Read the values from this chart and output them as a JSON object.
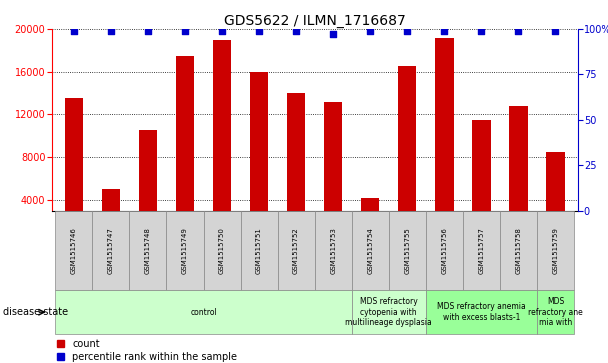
{
  "title": "GDS5622 / ILMN_1716687",
  "samples": [
    "GSM1515746",
    "GSM1515747",
    "GSM1515748",
    "GSM1515749",
    "GSM1515750",
    "GSM1515751",
    "GSM1515752",
    "GSM1515753",
    "GSM1515754",
    "GSM1515755",
    "GSM1515756",
    "GSM1515757",
    "GSM1515758",
    "GSM1515759"
  ],
  "counts": [
    13500,
    5000,
    10500,
    17500,
    19000,
    16000,
    14000,
    13200,
    4200,
    16500,
    19200,
    11500,
    12800,
    8500
  ],
  "percentile_ranks": [
    99,
    99,
    99,
    99,
    99,
    99,
    99,
    97,
    99,
    99,
    99,
    99,
    99,
    99
  ],
  "bar_color": "#cc0000",
  "dot_color": "#0000cc",
  "ylim_left": [
    3000,
    20000
  ],
  "ylim_right": [
    0,
    100
  ],
  "yticks_left": [
    4000,
    8000,
    12000,
    16000,
    20000
  ],
  "yticks_right": [
    0,
    25,
    50,
    75,
    100
  ],
  "disease_groups": [
    {
      "label": "control",
      "start": 0,
      "end": 8,
      "color": "#ccffcc"
    },
    {
      "label": "MDS refractory\ncytopenia with\nmultilineage dysplasia",
      "start": 8,
      "end": 10,
      "color": "#ccffcc"
    },
    {
      "label": "MDS refractory anemia\nwith excess blasts-1",
      "start": 10,
      "end": 13,
      "color": "#99ff99"
    },
    {
      "label": "MDS\nrefractory ane\nmia with",
      "start": 13,
      "end": 14,
      "color": "#99ff99"
    }
  ],
  "legend_count_label": "count",
  "legend_percentile_label": "percentile rank within the sample",
  "disease_state_label": "disease state",
  "title_fontsize": 10,
  "tick_fontsize": 7,
  "axis_label_fontsize": 7,
  "sample_label_fontsize": 5,
  "disease_label_fontsize": 5.5,
  "legend_fontsize": 7
}
